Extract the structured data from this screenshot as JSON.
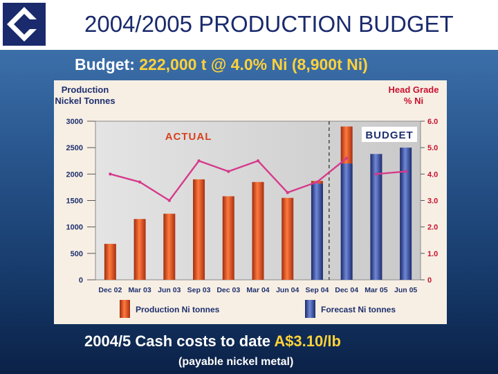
{
  "slide": {
    "title": "2004/2005 PRODUCTION BUDGET",
    "budget_label": "Budget:",
    "budget_value": "222,000 t @ 4.0% Ni (8,900t Ni)",
    "cash_label": "2004/5 Cash costs to date",
    "cash_value": "A$3.10/lb",
    "cash_note": "(payable nickel metal)"
  },
  "colors": {
    "title": "#1a2a6c",
    "highlight": "#ffd23a",
    "actual_bar": "#d8411f",
    "forecast_bar": "#2a3f8f",
    "grade_line": "#d63a8a",
    "annot_actual": "#d8411f",
    "annot_budget": "#1e2f6e",
    "axis_text": "#1e2f6e",
    "right_axis_text": "#c8102e"
  },
  "chart_data": {
    "type": "bar",
    "left_axis_title": [
      "Production",
      "Nickel Tonnes"
    ],
    "right_axis_title": [
      "Head Grade",
      "% Ni"
    ],
    "left_ticks": [
      0,
      500,
      1000,
      1500,
      2000,
      2500,
      3000
    ],
    "right_ticks": [
      "0",
      "1.0",
      "2.0",
      "3.0",
      "4.0",
      "5.0",
      "6.0"
    ],
    "ylim": [
      0,
      3000
    ],
    "y2lim": [
      0,
      6
    ],
    "categories": [
      "Dec 02",
      "Mar 03",
      "Jun 03",
      "Sep 03",
      "Dec 03",
      "Mar 04",
      "Jun 04",
      "Sep 04",
      "Dec 04",
      "Mar 05",
      "Jun 05"
    ],
    "series": [
      {
        "name": "Production Ni tonnes",
        "values": [
          680,
          1150,
          1250,
          1900,
          1580,
          1850,
          1550,
          1870,
          2900,
          null,
          null
        ]
      },
      {
        "name": "Forecast Ni tonnes",
        "values": [
          null,
          null,
          null,
          null,
          null,
          null,
          null,
          1820,
          2200,
          2380,
          2500
        ]
      },
      {
        "name": "Head Grade % Ni",
        "axis": "right",
        "values": [
          4.0,
          3.7,
          3.0,
          4.5,
          4.1,
          4.5,
          3.3,
          3.7,
          4.6,
          4.0,
          4.1
        ]
      }
    ],
    "annotations": {
      "actual": "ACTUAL",
      "budget": "BUDGET"
    },
    "legend": [
      "Production Ni tonnes",
      "Forecast Ni tonnes"
    ],
    "legend_position": "bottom"
  }
}
